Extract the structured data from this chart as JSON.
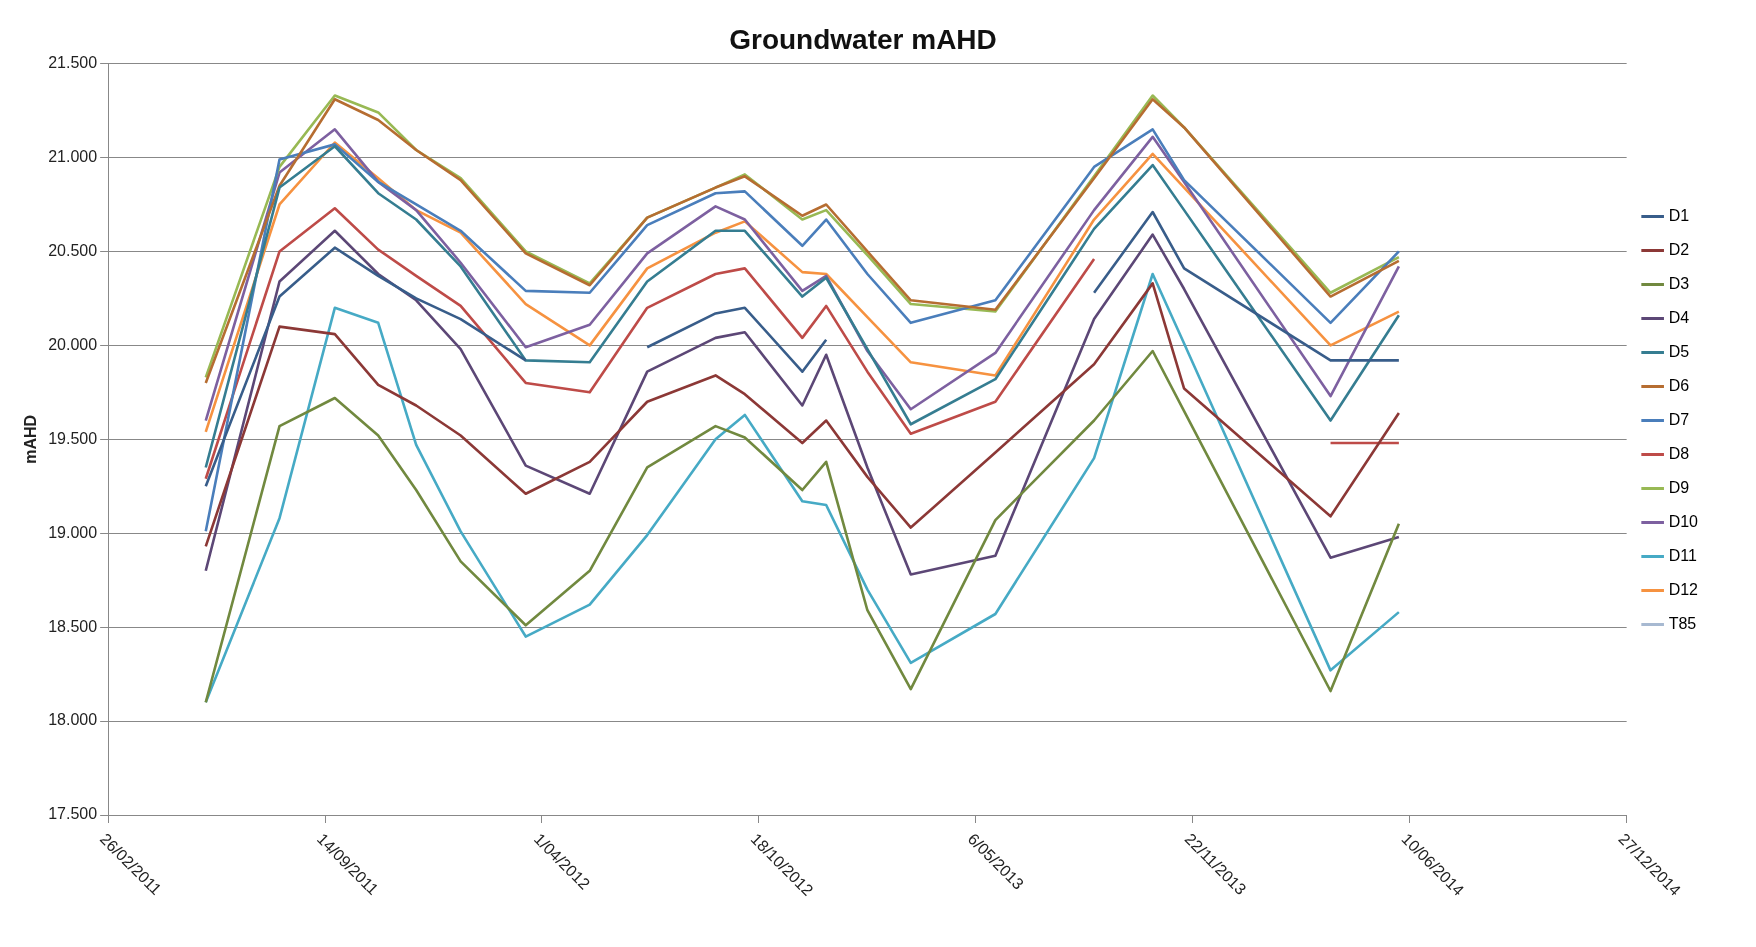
{
  "chart_data": {
    "type": "line",
    "title": "Groundwater mAHD",
    "ylabel": "mAHD",
    "x": [
      "2011-05-27",
      "2011-08-03",
      "2011-09-23",
      "2011-11-02",
      "2011-12-07",
      "2012-01-17",
      "2012-03-17",
      "2012-05-15",
      "2012-07-07",
      "2012-09-08",
      "2012-10-05",
      "2012-11-27",
      "2012-12-19",
      "2013-01-26",
      "2013-03-07",
      "2013-05-24",
      "2013-08-23",
      "2013-10-16",
      "2013-11-14",
      "2014-03-29",
      "2014-05-31"
    ],
    "xlim": [
      "2011-02-26",
      "2014-12-27"
    ],
    "xticks": [
      {
        "value": "2011-02-26",
        "label": "26/02/2011"
      },
      {
        "value": "2011-09-14",
        "label": "14/09/2011"
      },
      {
        "value": "2012-04-01",
        "label": "1/04/2012"
      },
      {
        "value": "2012-10-18",
        "label": "18/10/2012"
      },
      {
        "value": "2013-05-06",
        "label": "6/05/2013"
      },
      {
        "value": "2013-11-22",
        "label": "22/11/2013"
      },
      {
        "value": "2014-06-10",
        "label": "10/06/2014"
      },
      {
        "value": "2014-12-27",
        "label": "27/12/2014"
      }
    ],
    "ylim": [
      17.5,
      21.5
    ],
    "yticks": [
      {
        "value": 17.5,
        "label": "17.500"
      },
      {
        "value": 18,
        "label": "18.000"
      },
      {
        "value": 18.5,
        "label": "18.500"
      },
      {
        "value": 19,
        "label": "19.000"
      },
      {
        "value": 19.5,
        "label": "19.500"
      },
      {
        "value": 20,
        "label": "20.000"
      },
      {
        "value": 20.5,
        "label": "20.500"
      },
      {
        "value": 21,
        "label": "21.000"
      },
      {
        "value": 21.5,
        "label": "21.500"
      }
    ],
    "grid": "y",
    "legend": "right",
    "marker": "none",
    "line_style": "solid",
    "series": [
      {
        "name": "D1",
        "color": "#385d8a",
        "values": [
          19.25,
          20.26,
          20.52,
          20.37,
          20.25,
          20.14,
          19.92,
          null,
          19.99,
          20.17,
          20.2,
          19.86,
          20.03,
          null,
          null,
          null,
          20.28,
          20.71,
          20.41,
          19.92,
          19.92
        ]
      },
      {
        "name": "D2",
        "color": "#8c3836",
        "values": [
          18.93,
          20.1,
          20.06,
          19.79,
          19.68,
          19.52,
          19.21,
          19.38,
          19.7,
          19.84,
          19.74,
          19.48,
          19.6,
          19.3,
          19.03,
          19.43,
          19.9,
          20.33,
          19.77,
          19.09,
          19.64
        ]
      },
      {
        "name": "D3",
        "color": "#71893f",
        "values": [
          18.1,
          19.57,
          19.72,
          19.52,
          19.23,
          18.85,
          18.51,
          18.8,
          19.35,
          19.57,
          19.51,
          19.23,
          19.38,
          18.59,
          18.17,
          19.07,
          19.6,
          19.97,
          19.65,
          18.16,
          19.05
        ]
      },
      {
        "name": "D4",
        "color": "#5c4776",
        "values": [
          18.8,
          20.34,
          20.61,
          20.38,
          20.24,
          19.98,
          19.36,
          19.21,
          19.86,
          20.04,
          20.07,
          19.68,
          19.95,
          19.35,
          18.78,
          18.88,
          20.14,
          20.59,
          20.3,
          18.87,
          18.98
        ]
      },
      {
        "name": "D5",
        "color": "#357d91",
        "values": [
          19.35,
          20.84,
          21.06,
          20.81,
          20.67,
          20.42,
          19.92,
          19.91,
          20.34,
          20.61,
          20.61,
          20.26,
          20.36,
          19.98,
          19.58,
          19.82,
          20.62,
          20.96,
          20.72,
          19.6,
          20.16
        ]
      },
      {
        "name": "D6",
        "color": "#b66d31",
        "values": [
          19.8,
          20.85,
          21.31,
          21.2,
          21.04,
          20.88,
          20.49,
          20.32,
          20.68,
          20.84,
          20.9,
          20.69,
          20.75,
          20.5,
          20.24,
          20.19,
          20.89,
          21.31,
          21.16,
          20.26,
          20.45
        ]
      },
      {
        "name": "D7",
        "color": "#4a7ebb",
        "values": [
          19.01,
          20.99,
          21.07,
          20.87,
          20.75,
          20.61,
          20.29,
          20.28,
          20.64,
          20.81,
          20.82,
          20.53,
          20.67,
          20.38,
          20.12,
          20.24,
          20.95,
          21.15,
          20.88,
          20.12,
          20.5
        ]
      },
      {
        "name": "D8",
        "color": "#be4b48",
        "values": [
          19.29,
          20.5,
          20.73,
          20.51,
          20.37,
          20.21,
          19.8,
          19.75,
          20.2,
          20.38,
          20.41,
          20.04,
          20.21,
          19.86,
          19.53,
          19.7,
          20.46,
          null,
          null,
          19.48,
          19.48
        ]
      },
      {
        "name": "D9",
        "color": "#98b954",
        "values": [
          19.83,
          20.95,
          21.33,
          21.24,
          21.04,
          20.89,
          20.5,
          20.33,
          20.68,
          20.84,
          20.91,
          20.67,
          20.72,
          20.48,
          20.22,
          20.18,
          20.9,
          21.33,
          21.16,
          20.28,
          20.47
        ]
      },
      {
        "name": "D10",
        "color": "#7d60a0",
        "values": [
          19.6,
          20.92,
          21.15,
          20.87,
          20.72,
          20.44,
          19.99,
          20.11,
          20.49,
          20.74,
          20.67,
          20.29,
          20.37,
          19.97,
          19.66,
          19.96,
          20.72,
          21.11,
          20.87,
          19.73,
          20.42
        ]
      },
      {
        "name": "D11",
        "color": "#46aac5",
        "values": [
          18.1,
          19.08,
          20.2,
          20.12,
          19.47,
          19.01,
          18.45,
          18.62,
          18.99,
          19.5,
          19.63,
          19.17,
          19.15,
          18.7,
          18.31,
          18.57,
          19.4,
          20.38,
          20.01,
          18.27,
          18.58
        ]
      },
      {
        "name": "D12",
        "color": "#f69240",
        "values": [
          19.54,
          20.75,
          21.08,
          20.89,
          20.72,
          20.6,
          20.22,
          20.0,
          20.41,
          20.6,
          20.66,
          20.39,
          20.38,
          20.15,
          19.91,
          19.84,
          20.67,
          21.02,
          20.84,
          20.0,
          20.18
        ]
      },
      {
        "name": "T85",
        "color": "#a7b9d1",
        "values": [
          null,
          null,
          null,
          null,
          null,
          null,
          null,
          null,
          null,
          null,
          null,
          null,
          null,
          null,
          null,
          null,
          null,
          null,
          null,
          null,
          null
        ]
      }
    ]
  }
}
